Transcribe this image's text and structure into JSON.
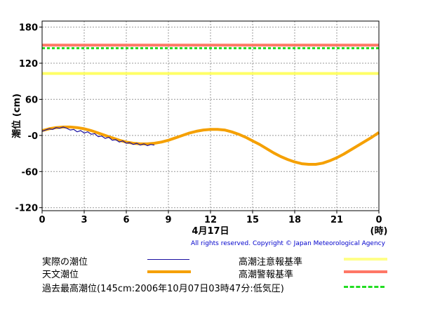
{
  "chart_data": {
    "type": "line",
    "ylabel": "潮位 (cm)",
    "x_ticks": [
      "0",
      "3",
      "6",
      "9",
      "12",
      "15",
      "18",
      "21",
      "0"
    ],
    "x_tick_values": [
      0,
      3,
      6,
      9,
      12,
      15,
      18,
      21,
      24
    ],
    "x_unit": "(時)",
    "date_label": "4月17日",
    "y_ticks": [
      "180",
      "120",
      "60",
      "-0",
      "-60",
      "-120"
    ],
    "y_tick_values": [
      180,
      120,
      60,
      0,
      -60,
      -120
    ],
    "xlim": [
      0,
      24
    ],
    "ylim": [
      -125,
      190
    ],
    "grid": true,
    "series": [
      {
        "name": "実際の潮位",
        "color": "#1a10a0",
        "x": [
          0,
          0.25,
          0.5,
          0.75,
          1.0,
          1.25,
          1.5,
          1.75,
          2.0,
          2.25,
          2.5,
          2.75,
          3.0,
          3.25,
          3.5,
          3.75,
          4.0,
          4.25,
          4.5,
          4.75,
          5.0,
          5.25,
          5.5,
          5.75,
          6.0,
          6.25,
          6.5,
          6.75,
          7.0,
          7.25,
          7.5,
          7.75,
          8.0
        ],
        "y": [
          7,
          9,
          11,
          10,
          13,
          12,
          14,
          12,
          9,
          10,
          6,
          8,
          4,
          6,
          2,
          3,
          -2,
          -1,
          -5,
          -3,
          -8,
          -7,
          -11,
          -9,
          -13,
          -12,
          -15,
          -13,
          -16,
          -14,
          -17,
          -15,
          -16
        ]
      },
      {
        "name": "天文潮位",
        "color": "#f5a000",
        "x": [
          0,
          0.5,
          1,
          1.5,
          2,
          2.5,
          3,
          3.5,
          4,
          4.5,
          5,
          5.5,
          6,
          6.5,
          7,
          7.5,
          8,
          8.5,
          9,
          9.5,
          10,
          10.5,
          11,
          11.5,
          12,
          12.5,
          13,
          13.5,
          14,
          14.5,
          15,
          15.5,
          16,
          16.5,
          17,
          17.5,
          18,
          18.5,
          19,
          19.5,
          20,
          20.5,
          21,
          21.5,
          22,
          22.5,
          23,
          23.5,
          24
        ],
        "y": [
          8,
          11,
          13,
          14,
          14,
          13,
          11,
          8,
          4,
          0,
          -4,
          -8,
          -11,
          -13,
          -14,
          -14,
          -13,
          -11,
          -8,
          -4,
          0,
          4,
          7,
          9,
          10,
          10,
          9,
          6,
          2,
          -3,
          -9,
          -15,
          -22,
          -29,
          -35,
          -40,
          -44,
          -47,
          -48,
          -48,
          -46,
          -42,
          -37,
          -31,
          -24,
          -17,
          -10,
          -3,
          5
        ]
      }
    ],
    "reference_lines": [
      {
        "name": "高潮注意報基準",
        "value": 103,
        "color": "#ffff66",
        "style": "solid"
      },
      {
        "name": "高潮警報基準",
        "value": 150,
        "color": "#ff7766",
        "style": "solid"
      },
      {
        "name": "過去最高潮位(145cm:2006年10月07日03時47分:低気圧)",
        "value": 145,
        "color": "#22dd22",
        "style": "dashed"
      }
    ]
  },
  "copyright": "All rights reserved. Copyright © Japan Meteorological Agency",
  "legend": [
    {
      "label": "実際の潮位",
      "color": "#1a10a0",
      "style": "thin"
    },
    {
      "label": "高潮注意報基準",
      "color": "#ffff88",
      "style": "thick"
    },
    {
      "label": "天文潮位",
      "color": "#f5a000",
      "style": "thick"
    },
    {
      "label": "高潮警報基準",
      "color": "#ff7766",
      "style": "thick"
    },
    {
      "label": "過去最高潮位(145cm:2006年10月07日03時47分:低気圧)",
      "color": "#22dd22",
      "style": "dashed"
    }
  ]
}
